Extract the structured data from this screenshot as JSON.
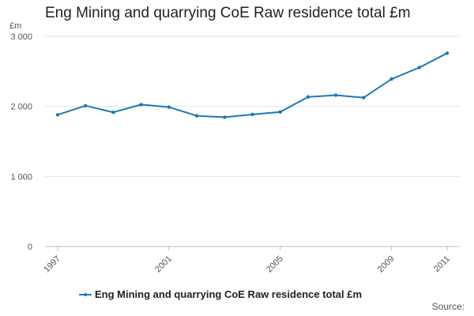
{
  "chart_data": {
    "type": "line",
    "title": "Eng Mining and quarrying CoE Raw residence total £m",
    "unit_label": "£m",
    "x": [
      1997,
      1998,
      1999,
      2000,
      2001,
      2002,
      2003,
      2004,
      2005,
      2006,
      2007,
      2008,
      2009,
      2010,
      2011
    ],
    "series": [
      {
        "name": "Eng Mining and quarrying CoE Raw residence total £m",
        "color": "#1a7ab5",
        "values": [
          1880,
          2010,
          1915,
          2025,
          1990,
          1865,
          1845,
          1885,
          1920,
          2135,
          2160,
          2125,
          2390,
          2555,
          2760
        ]
      }
    ],
    "ylim": [
      0,
      3000
    ],
    "yticks": [
      0,
      1000,
      2000,
      3000
    ],
    "ytick_labels": [
      "0",
      "1 000",
      "2 000",
      "3 000"
    ],
    "xticks": [
      1997,
      2001,
      2005,
      2009,
      2011
    ],
    "xtick_labels": [
      "1997",
      "2001",
      "2005",
      "2009",
      "2011"
    ],
    "grid": true,
    "legend": "bottom"
  },
  "source_label": "Source:"
}
